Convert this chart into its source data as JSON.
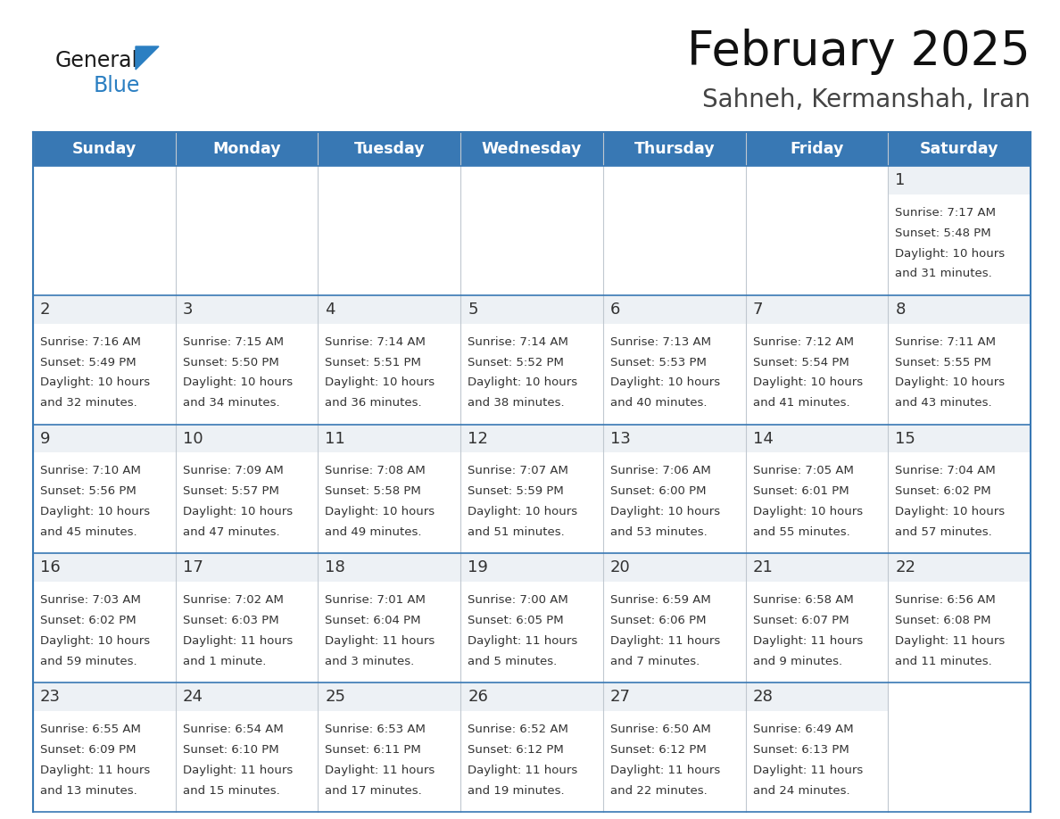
{
  "title": "February 2025",
  "subtitle": "Sahneh, Kermanshah, Iran",
  "header_color": "#3878b4",
  "header_text_color": "#ffffff",
  "border_color": "#3878b4",
  "cell_day_bg": "#e8eef4",
  "cell_bg_color": "#ffffff",
  "text_color": "#333333",
  "day_number_color": "#333333",
  "days_of_week": [
    "Sunday",
    "Monday",
    "Tuesday",
    "Wednesday",
    "Thursday",
    "Friday",
    "Saturday"
  ],
  "calendar": [
    [
      {
        "day": "",
        "info": ""
      },
      {
        "day": "",
        "info": ""
      },
      {
        "day": "",
        "info": ""
      },
      {
        "day": "",
        "info": ""
      },
      {
        "day": "",
        "info": ""
      },
      {
        "day": "",
        "info": ""
      },
      {
        "day": "1",
        "info": "Sunrise: 7:17 AM\nSunset: 5:48 PM\nDaylight: 10 hours\nand 31 minutes."
      }
    ],
    [
      {
        "day": "2",
        "info": "Sunrise: 7:16 AM\nSunset: 5:49 PM\nDaylight: 10 hours\nand 32 minutes."
      },
      {
        "day": "3",
        "info": "Sunrise: 7:15 AM\nSunset: 5:50 PM\nDaylight: 10 hours\nand 34 minutes."
      },
      {
        "day": "4",
        "info": "Sunrise: 7:14 AM\nSunset: 5:51 PM\nDaylight: 10 hours\nand 36 minutes."
      },
      {
        "day": "5",
        "info": "Sunrise: 7:14 AM\nSunset: 5:52 PM\nDaylight: 10 hours\nand 38 minutes."
      },
      {
        "day": "6",
        "info": "Sunrise: 7:13 AM\nSunset: 5:53 PM\nDaylight: 10 hours\nand 40 minutes."
      },
      {
        "day": "7",
        "info": "Sunrise: 7:12 AM\nSunset: 5:54 PM\nDaylight: 10 hours\nand 41 minutes."
      },
      {
        "day": "8",
        "info": "Sunrise: 7:11 AM\nSunset: 5:55 PM\nDaylight: 10 hours\nand 43 minutes."
      }
    ],
    [
      {
        "day": "9",
        "info": "Sunrise: 7:10 AM\nSunset: 5:56 PM\nDaylight: 10 hours\nand 45 minutes."
      },
      {
        "day": "10",
        "info": "Sunrise: 7:09 AM\nSunset: 5:57 PM\nDaylight: 10 hours\nand 47 minutes."
      },
      {
        "day": "11",
        "info": "Sunrise: 7:08 AM\nSunset: 5:58 PM\nDaylight: 10 hours\nand 49 minutes."
      },
      {
        "day": "12",
        "info": "Sunrise: 7:07 AM\nSunset: 5:59 PM\nDaylight: 10 hours\nand 51 minutes."
      },
      {
        "day": "13",
        "info": "Sunrise: 7:06 AM\nSunset: 6:00 PM\nDaylight: 10 hours\nand 53 minutes."
      },
      {
        "day": "14",
        "info": "Sunrise: 7:05 AM\nSunset: 6:01 PM\nDaylight: 10 hours\nand 55 minutes."
      },
      {
        "day": "15",
        "info": "Sunrise: 7:04 AM\nSunset: 6:02 PM\nDaylight: 10 hours\nand 57 minutes."
      }
    ],
    [
      {
        "day": "16",
        "info": "Sunrise: 7:03 AM\nSunset: 6:02 PM\nDaylight: 10 hours\nand 59 minutes."
      },
      {
        "day": "17",
        "info": "Sunrise: 7:02 AM\nSunset: 6:03 PM\nDaylight: 11 hours\nand 1 minute."
      },
      {
        "day": "18",
        "info": "Sunrise: 7:01 AM\nSunset: 6:04 PM\nDaylight: 11 hours\nand 3 minutes."
      },
      {
        "day": "19",
        "info": "Sunrise: 7:00 AM\nSunset: 6:05 PM\nDaylight: 11 hours\nand 5 minutes."
      },
      {
        "day": "20",
        "info": "Sunrise: 6:59 AM\nSunset: 6:06 PM\nDaylight: 11 hours\nand 7 minutes."
      },
      {
        "day": "21",
        "info": "Sunrise: 6:58 AM\nSunset: 6:07 PM\nDaylight: 11 hours\nand 9 minutes."
      },
      {
        "day": "22",
        "info": "Sunrise: 6:56 AM\nSunset: 6:08 PM\nDaylight: 11 hours\nand 11 minutes."
      }
    ],
    [
      {
        "day": "23",
        "info": "Sunrise: 6:55 AM\nSunset: 6:09 PM\nDaylight: 11 hours\nand 13 minutes."
      },
      {
        "day": "24",
        "info": "Sunrise: 6:54 AM\nSunset: 6:10 PM\nDaylight: 11 hours\nand 15 minutes."
      },
      {
        "day": "25",
        "info": "Sunrise: 6:53 AM\nSunset: 6:11 PM\nDaylight: 11 hours\nand 17 minutes."
      },
      {
        "day": "26",
        "info": "Sunrise: 6:52 AM\nSunset: 6:12 PM\nDaylight: 11 hours\nand 19 minutes."
      },
      {
        "day": "27",
        "info": "Sunrise: 6:50 AM\nSunset: 6:12 PM\nDaylight: 11 hours\nand 22 minutes."
      },
      {
        "day": "28",
        "info": "Sunrise: 6:49 AM\nSunset: 6:13 PM\nDaylight: 11 hours\nand 24 minutes."
      },
      {
        "day": "",
        "info": ""
      }
    ]
  ],
  "logo_general_color": "#1a1a1a",
  "logo_blue_color": "#2b7fc2",
  "fig_width": 11.88,
  "fig_height": 9.18
}
